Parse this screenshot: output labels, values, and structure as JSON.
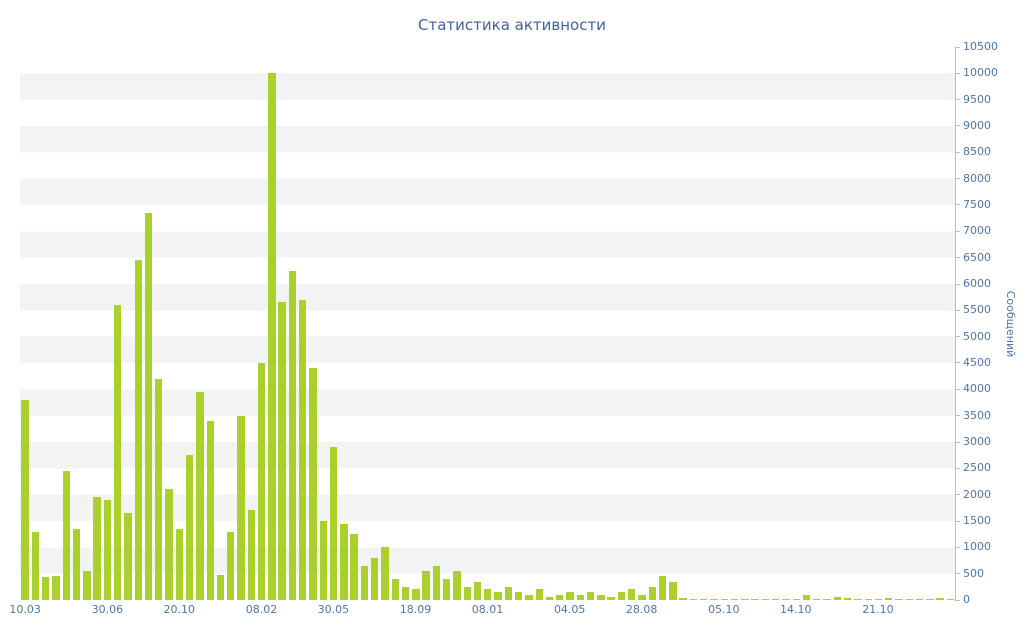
{
  "chart_data": {
    "type": "bar",
    "title": "Статистика активности",
    "ylabel": "Сообщений",
    "xlabel": "",
    "ylim": [
      0,
      10500
    ],
    "y_tick_step": 500,
    "grid": "horizontal-bands",
    "legend": "none",
    "y_tick_labels": [
      "0",
      "500",
      "1000",
      "1500",
      "2000",
      "2500",
      "3000",
      "3500",
      "4000",
      "4500",
      "5000",
      "5500",
      "6000",
      "6500",
      "7000",
      "7500",
      "8000",
      "8500",
      "9000",
      "9500",
      "10000",
      "10500"
    ],
    "x_tick_labels": [
      "10.03",
      "30.06",
      "20.10",
      "08.02",
      "30.05",
      "18.09",
      "08.01",
      "04.05",
      "28.08",
      "05.10",
      "14.10",
      "21.10"
    ],
    "x_tick_bar_indices": [
      0,
      8,
      15,
      23,
      30,
      38,
      45,
      53,
      60,
      68,
      75,
      83
    ],
    "values": [
      3800,
      1300,
      430,
      450,
      2450,
      1350,
      560,
      1950,
      1900,
      5600,
      1650,
      6450,
      7350,
      4200,
      2100,
      1350,
      2750,
      3950,
      3400,
      480,
      1300,
      3500,
      1700,
      4500,
      10000,
      5650,
      6250,
      5700,
      4400,
      1500,
      2900,
      1450,
      1250,
      650,
      800,
      1000,
      400,
      250,
      200,
      550,
      650,
      400,
      550,
      250,
      350,
      200,
      150,
      250,
      150,
      100,
      200,
      50,
      100,
      150,
      100,
      150,
      100,
      50,
      150,
      200,
      100,
      250,
      450,
      350,
      30,
      20,
      10,
      10,
      20,
      10,
      10,
      20,
      10,
      10,
      20,
      10,
      100,
      20,
      10,
      60,
      30,
      10,
      20,
      10,
      30,
      10,
      20,
      10,
      10,
      30,
      20
    ],
    "colors": {
      "bar": "#a9d02b",
      "title": "#3f62a0",
      "label": "#4d76ab",
      "stripe": "#f3f3f3",
      "axis": "#aebfd8"
    }
  }
}
